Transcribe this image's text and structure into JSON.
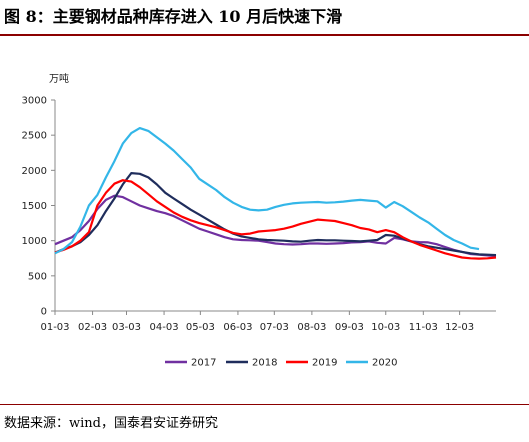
{
  "header": {
    "title": "图 8：主要钢材品种库存进入 10 月后快速下滑"
  },
  "footer": {
    "source": "数据来源：wind，国泰君安证券研究"
  },
  "chart_data": {
    "type": "line",
    "unit_label": "万吨",
    "title": "",
    "xlabel": "",
    "ylabel": "万吨",
    "ylim": [
      0,
      3000
    ],
    "yticks": [
      0,
      500,
      1000,
      1500,
      2000,
      2500,
      3000
    ],
    "xlim": [
      1,
      53
    ],
    "x_ticks": [
      {
        "label": "01-03",
        "week": 1
      },
      {
        "label": "02-03",
        "week": 5.43
      },
      {
        "label": "03-03",
        "week": 9.43
      },
      {
        "label": "04-03",
        "week": 13.86
      },
      {
        "label": "05-03",
        "week": 18.14
      },
      {
        "label": "06-03",
        "week": 22.57
      },
      {
        "label": "07-03",
        "week": 26.86
      },
      {
        "label": "08-03",
        "week": 31.29
      },
      {
        "label": "09-03",
        "week": 35.71
      },
      {
        "label": "10-03",
        "week": 40
      },
      {
        "label": "11-03",
        "week": 44.43
      },
      {
        "label": "12-03",
        "week": 48.71
      }
    ],
    "legend_position": "bottom",
    "grid": false,
    "series": [
      {
        "name": "2017",
        "color": "#7030a0",
        "points": [
          [
            1,
            950
          ],
          [
            2,
            1000
          ],
          [
            3,
            1050
          ],
          [
            4,
            1150
          ],
          [
            5,
            1280
          ],
          [
            6,
            1450
          ],
          [
            7,
            1580
          ],
          [
            8,
            1640
          ],
          [
            9,
            1620
          ],
          [
            10,
            1560
          ],
          [
            11,
            1500
          ],
          [
            12,
            1460
          ],
          [
            13,
            1420
          ],
          [
            14,
            1390
          ],
          [
            15,
            1350
          ],
          [
            16,
            1290
          ],
          [
            17,
            1230
          ],
          [
            18,
            1170
          ],
          [
            19,
            1130
          ],
          [
            20,
            1090
          ],
          [
            21,
            1050
          ],
          [
            22,
            1020
          ],
          [
            23,
            1010
          ],
          [
            24,
            1005
          ],
          [
            25,
            1000
          ],
          [
            26,
            980
          ],
          [
            27,
            960
          ],
          [
            28,
            950
          ],
          [
            29,
            945
          ],
          [
            30,
            950
          ],
          [
            31,
            960
          ],
          [
            32,
            960
          ],
          [
            33,
            955
          ],
          [
            34,
            960
          ],
          [
            35,
            965
          ],
          [
            36,
            975
          ],
          [
            37,
            980
          ],
          [
            38,
            990
          ],
          [
            39,
            970
          ],
          [
            40,
            960
          ],
          [
            41,
            1040
          ],
          [
            42,
            1020
          ],
          [
            43,
            990
          ],
          [
            44,
            980
          ],
          [
            45,
            975
          ],
          [
            46,
            950
          ],
          [
            47,
            910
          ],
          [
            48,
            870
          ],
          [
            49,
            840
          ],
          [
            50,
            810
          ],
          [
            51,
            800
          ],
          [
            52,
            790
          ],
          [
            53,
            780
          ]
        ]
      },
      {
        "name": "2018",
        "color": "#1f2d5c",
        "points": [
          [
            1,
            830
          ],
          [
            2,
            880
          ],
          [
            3,
            920
          ],
          [
            4,
            980
          ],
          [
            5,
            1080
          ],
          [
            6,
            1220
          ],
          [
            7,
            1420
          ],
          [
            8,
            1600
          ],
          [
            9,
            1800
          ],
          [
            10,
            1960
          ],
          [
            11,
            1950
          ],
          [
            12,
            1900
          ],
          [
            13,
            1800
          ],
          [
            14,
            1680
          ],
          [
            15,
            1600
          ],
          [
            16,
            1520
          ],
          [
            17,
            1440
          ],
          [
            18,
            1370
          ],
          [
            19,
            1300
          ],
          [
            20,
            1230
          ],
          [
            21,
            1160
          ],
          [
            22,
            1100
          ],
          [
            23,
            1060
          ],
          [
            24,
            1040
          ],
          [
            25,
            1020
          ],
          [
            26,
            1010
          ],
          [
            27,
            1005
          ],
          [
            28,
            1000
          ],
          [
            29,
            990
          ],
          [
            30,
            985
          ],
          [
            31,
            1000
          ],
          [
            32,
            1010
          ],
          [
            33,
            1005
          ],
          [
            34,
            1005
          ],
          [
            35,
            1000
          ],
          [
            36,
            995
          ],
          [
            37,
            990
          ],
          [
            38,
            1000
          ],
          [
            39,
            1010
          ],
          [
            40,
            1080
          ],
          [
            41,
            1070
          ],
          [
            42,
            1030
          ],
          [
            43,
            990
          ],
          [
            44,
            950
          ],
          [
            45,
            920
          ],
          [
            46,
            900
          ],
          [
            47,
            880
          ],
          [
            48,
            860
          ],
          [
            49,
            840
          ],
          [
            50,
            820
          ],
          [
            51,
            805
          ],
          [
            52,
            800
          ],
          [
            53,
            795
          ]
        ]
      },
      {
        "name": "2019",
        "color": "#ff0000",
        "points": [
          [
            1,
            830
          ],
          [
            2,
            870
          ],
          [
            3,
            920
          ],
          [
            4,
            1000
          ],
          [
            5,
            1120
          ],
          [
            6,
            1500
          ],
          [
            7,
            1680
          ],
          [
            8,
            1810
          ],
          [
            9,
            1860
          ],
          [
            10,
            1840
          ],
          [
            11,
            1760
          ],
          [
            12,
            1660
          ],
          [
            13,
            1560
          ],
          [
            14,
            1480
          ],
          [
            15,
            1400
          ],
          [
            16,
            1340
          ],
          [
            17,
            1290
          ],
          [
            18,
            1250
          ],
          [
            19,
            1220
          ],
          [
            20,
            1190
          ],
          [
            21,
            1150
          ],
          [
            22,
            1110
          ],
          [
            23,
            1090
          ],
          [
            24,
            1100
          ],
          [
            25,
            1130
          ],
          [
            26,
            1140
          ],
          [
            27,
            1150
          ],
          [
            28,
            1170
          ],
          [
            29,
            1200
          ],
          [
            30,
            1240
          ],
          [
            31,
            1270
          ],
          [
            32,
            1300
          ],
          [
            33,
            1290
          ],
          [
            34,
            1280
          ],
          [
            35,
            1250
          ],
          [
            36,
            1220
          ],
          [
            37,
            1180
          ],
          [
            38,
            1160
          ],
          [
            39,
            1120
          ],
          [
            40,
            1150
          ],
          [
            41,
            1120
          ],
          [
            42,
            1050
          ],
          [
            43,
            990
          ],
          [
            44,
            940
          ],
          [
            45,
            900
          ],
          [
            46,
            860
          ],
          [
            47,
            820
          ],
          [
            48,
            790
          ],
          [
            49,
            760
          ],
          [
            50,
            750
          ],
          [
            51,
            745
          ],
          [
            52,
            750
          ],
          [
            53,
            760
          ]
        ]
      },
      {
        "name": "2020",
        "color": "#33b6e8",
        "points": [
          [
            1,
            820
          ],
          [
            2,
            880
          ],
          [
            3,
            980
          ],
          [
            4,
            1200
          ],
          [
            5,
            1500
          ],
          [
            6,
            1650
          ],
          [
            7,
            1900
          ],
          [
            8,
            2130
          ],
          [
            9,
            2380
          ],
          [
            10,
            2530
          ],
          [
            11,
            2600
          ],
          [
            12,
            2560
          ],
          [
            13,
            2470
          ],
          [
            14,
            2380
          ],
          [
            15,
            2280
          ],
          [
            16,
            2160
          ],
          [
            17,
            2040
          ],
          [
            18,
            1880
          ],
          [
            19,
            1800
          ],
          [
            20,
            1720
          ],
          [
            21,
            1620
          ],
          [
            22,
            1540
          ],
          [
            23,
            1480
          ],
          [
            24,
            1440
          ],
          [
            25,
            1430
          ],
          [
            26,
            1440
          ],
          [
            27,
            1480
          ],
          [
            28,
            1510
          ],
          [
            29,
            1530
          ],
          [
            30,
            1540
          ],
          [
            31,
            1545
          ],
          [
            32,
            1550
          ],
          [
            33,
            1540
          ],
          [
            34,
            1545
          ],
          [
            35,
            1555
          ],
          [
            36,
            1570
          ],
          [
            37,
            1580
          ],
          [
            38,
            1570
          ],
          [
            39,
            1560
          ],
          [
            40,
            1470
          ],
          [
            41,
            1550
          ],
          [
            42,
            1490
          ],
          [
            43,
            1410
          ],
          [
            44,
            1330
          ],
          [
            45,
            1260
          ],
          [
            46,
            1170
          ],
          [
            47,
            1080
          ],
          [
            48,
            1010
          ],
          [
            49,
            960
          ],
          [
            50,
            900
          ],
          [
            51,
            880
          ]
        ]
      }
    ]
  }
}
